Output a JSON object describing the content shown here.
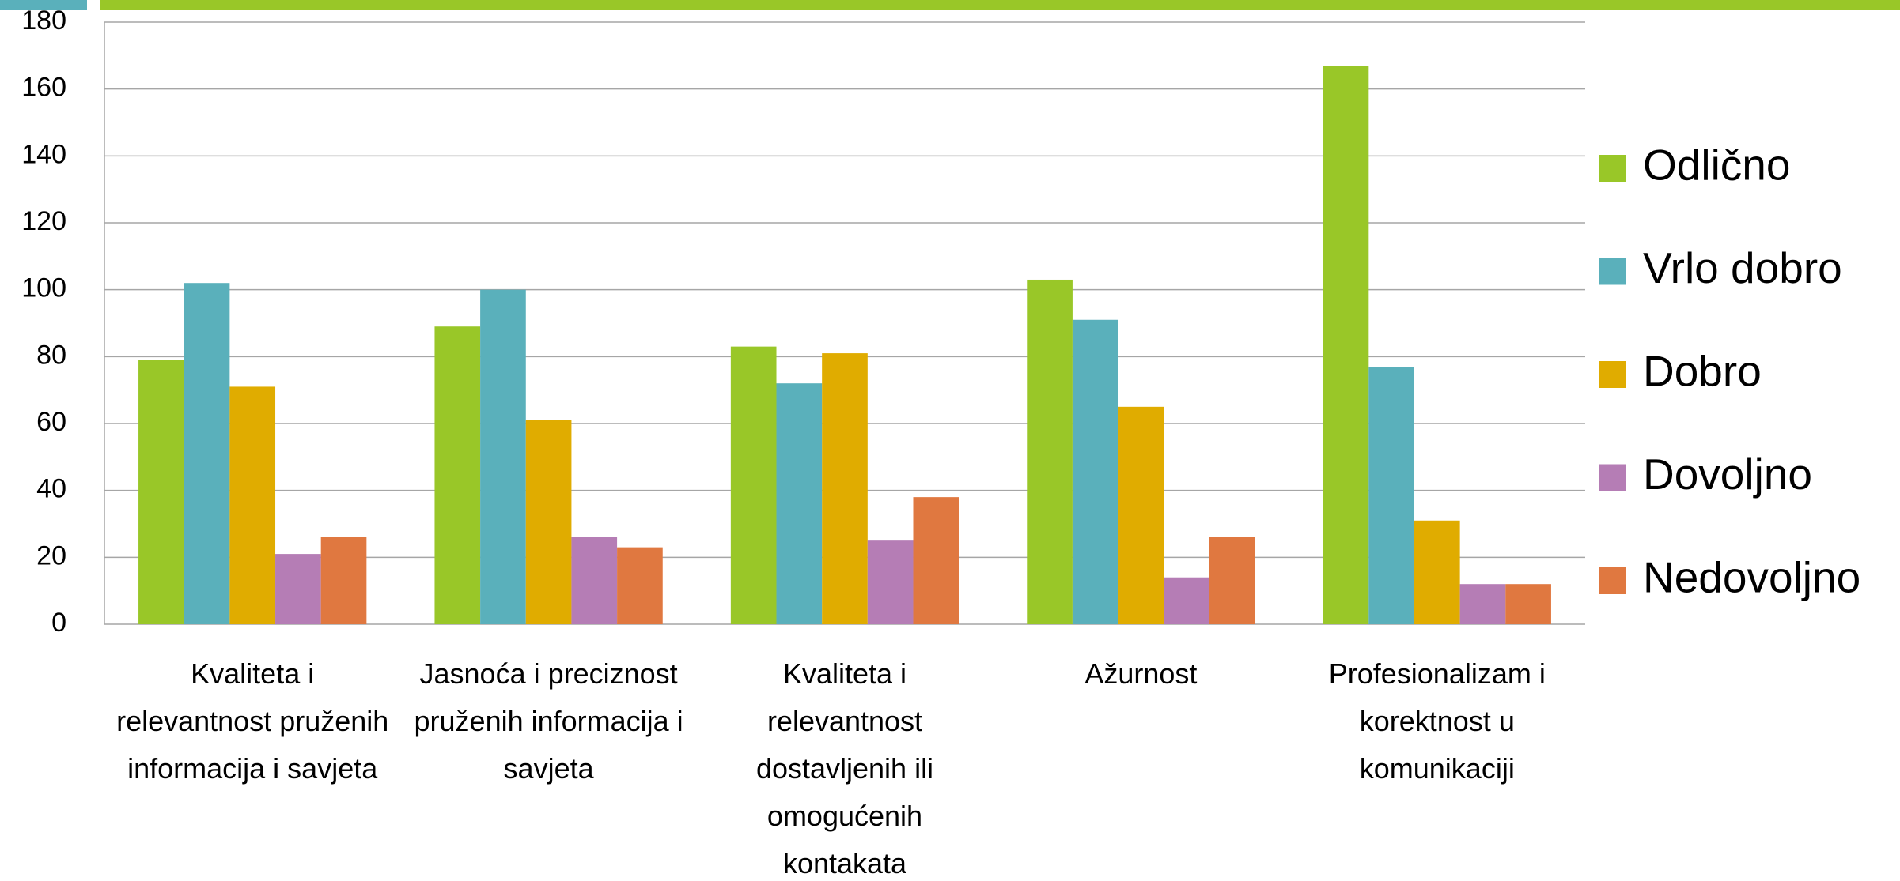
{
  "chart_data": {
    "type": "bar",
    "categories": [
      "Kvaliteta i relevantnost pruženih informacija i savjeta",
      "Jasnoća i preciznost pruženih informacija i savjeta",
      "Kvaliteta i relevantnost dostavljenih ili omogućenih kontakata",
      "Ažurnost",
      "Profesionalizam i korektnost u komunikaciji"
    ],
    "series": [
      {
        "name": "Odlično",
        "color": "#99c728",
        "values": [
          79,
          89,
          83,
          103,
          167
        ]
      },
      {
        "name": "Vrlo dobro",
        "color": "#5ab0bb",
        "values": [
          102,
          100,
          72,
          91,
          77
        ]
      },
      {
        "name": "Dobro",
        "color": "#e0ac00",
        "values": [
          71,
          61,
          81,
          65,
          31
        ]
      },
      {
        "name": "Dovoljno",
        "color": "#b57db5",
        "values": [
          21,
          26,
          25,
          14,
          12
        ]
      },
      {
        "name": "Nedovoljno",
        "color": "#e07840",
        "values": [
          26,
          23,
          38,
          26,
          12
        ]
      }
    ],
    "ylim": [
      0,
      180
    ],
    "yticks": [
      0,
      20,
      40,
      60,
      80,
      100,
      120,
      140,
      160,
      180
    ],
    "grid": true,
    "legend": "right"
  }
}
